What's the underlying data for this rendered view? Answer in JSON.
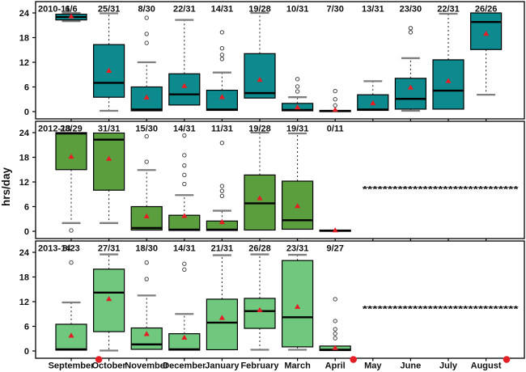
{
  "chart_data": {
    "type": "box",
    "ylabel": "hrs/day",
    "yticks": [
      0,
      6,
      12,
      18,
      24
    ],
    "ylim": [
      0,
      25
    ],
    "grid": false,
    "months": [
      "September",
      "October",
      "November",
      "December",
      "January",
      "February",
      "March",
      "April",
      "May",
      "June",
      "July",
      "August"
    ],
    "footnote_dot_months": [
      "September",
      "April",
      "August"
    ],
    "colors": {
      "panel1_box": "#0d8a8d",
      "panel2_box": "#5a9e3e",
      "panel3_box": "#6fc87d",
      "mean_marker": "#e31e24",
      "year_label": "#e31e24",
      "footnote_dot": "#e31e24",
      "whisker_cap": "#7f7f7f",
      "whisker_line": "#222222",
      "outlier_stroke": "#444444",
      "box_stroke": "#000000",
      "text": "#111111"
    },
    "panels": [
      {
        "year_label": "2010-11",
        "box_color_key": "panel1_box",
        "boxes": [
          {
            "month": "September",
            "count": "6/6",
            "q1": 22.3,
            "q3": 23.7,
            "median": 23.0,
            "mean": 23.2,
            "whisker_low": 22.0,
            "whisker_high": 24.0,
            "outliers": []
          },
          {
            "month": "October",
            "count": "25/31",
            "q1": 3.5,
            "q3": 16.3,
            "median": 7.0,
            "mean": 10.0,
            "whisker_low": 0.2,
            "whisker_high": 23.9,
            "outliers": []
          },
          {
            "month": "November",
            "count": "8/30",
            "q1": 0.2,
            "q3": 6.0,
            "median": 0.5,
            "mean": 3.5,
            "whisker_low": null,
            "whisker_high": 12.0,
            "outliers": [
              16.7,
              18.9,
              22.8
            ]
          },
          {
            "month": "December",
            "count": "22/31",
            "q1": 1.6,
            "q3": 9.2,
            "median": 4.2,
            "mean": 6.3,
            "whisker_low": null,
            "whisker_high": 22.3,
            "outliers": []
          },
          {
            "month": "January",
            "count": "14/31",
            "q1": 0.3,
            "q3": 5.2,
            "median": 0.5,
            "mean": 3.6,
            "whisker_low": null,
            "whisker_high": 9.5,
            "outliers": [
              12.8,
              13.8,
              15.4,
              19.3
            ]
          },
          {
            "month": "February",
            "count": "19/28",
            "q1": 3.3,
            "q3": 14.1,
            "median": 4.5,
            "mean": 7.8,
            "whisker_low": null,
            "whisker_high": 24.0,
            "outliers": []
          },
          {
            "month": "March",
            "count": "10/31",
            "q1": 0.2,
            "q3": 2.0,
            "median": 0.4,
            "mean": 1.1,
            "whisker_low": null,
            "whisker_high": 3.5,
            "outliers": [
              4.9,
              6.1,
              7.9
            ]
          },
          {
            "month": "April",
            "count": "7/30",
            "q1": 0.0,
            "q3": 0.3,
            "median": 0.15,
            "mean": 0.5,
            "whisker_low": null,
            "whisker_high": null,
            "outliers": [
              1.5,
              3.0,
              5.0
            ]
          },
          {
            "month": "May",
            "count": "13/31",
            "q1": 0.3,
            "q3": 4.1,
            "median": 0.5,
            "mean": 2.1,
            "whisker_low": null,
            "whisker_high": 7.4,
            "outliers": []
          },
          {
            "month": "June",
            "count": "23/30",
            "q1": 0.6,
            "q3": 8.1,
            "median": 3.1,
            "mean": 5.9,
            "whisker_low": 0.2,
            "whisker_high": 13.0,
            "outliers": [
              19.3,
              20.3
            ]
          },
          {
            "month": "July",
            "count": "22/31",
            "q1": 0.6,
            "q3": 12.6,
            "median": 5.1,
            "mean": 7.5,
            "whisker_low": null,
            "whisker_high": 23.8,
            "outliers": []
          },
          {
            "month": "August",
            "count": "26/26",
            "q1": 15.1,
            "q3": 24.0,
            "median": 21.8,
            "mean": 19.0,
            "whisker_low": 4.1,
            "whisker_high": null,
            "outliers": []
          }
        ],
        "asterisk_row": null
      },
      {
        "year_label": "2012-13",
        "box_color_key": "panel2_box",
        "boxes": [
          {
            "month": "September",
            "count": "28/29",
            "q1": 15.0,
            "q3": 24.0,
            "median": 23.8,
            "mean": 18.2,
            "whisker_low": 2.0,
            "whisker_high": null,
            "outliers": [
              0.2
            ]
          },
          {
            "month": "October",
            "count": "31/31",
            "q1": 10.0,
            "q3": 23.9,
            "median": 22.3,
            "mean": 17.7,
            "whisker_low": 2.0,
            "whisker_high": null,
            "outliers": []
          },
          {
            "month": "November",
            "count": "15/30",
            "q1": 0.3,
            "q3": 6.0,
            "median": 0.8,
            "mean": 3.7,
            "whisker_low": null,
            "whisker_high": 14.9,
            "outliers": [
              16.9,
              23.1
            ]
          },
          {
            "month": "December",
            "count": "14/31",
            "q1": 0.2,
            "q3": 3.9,
            "median": 0.4,
            "mean": 3.8,
            "whisker_low": null,
            "whisker_high": 8.8,
            "outliers": [
              11.5,
              13.7,
              16.0,
              18.5,
              23.3
            ]
          },
          {
            "month": "January",
            "count": "11/31",
            "q1": 0.2,
            "q3": 2.5,
            "median": 0.4,
            "mean": 2.3,
            "whisker_low": null,
            "whisker_high": 5.0,
            "outliers": [
              8.6,
              9.8,
              11.0,
              21.5
            ]
          },
          {
            "month": "February",
            "count": "19/28",
            "q1": 0.3,
            "q3": 13.7,
            "median": 6.8,
            "mean": 8.1,
            "whisker_low": null,
            "whisker_high": 24.0,
            "outliers": []
          },
          {
            "month": "March",
            "count": "19/31",
            "q1": 0.5,
            "q3": 12.2,
            "median": 2.7,
            "mean": 6.2,
            "whisker_low": null,
            "whisker_high": 23.8,
            "outliers": []
          },
          {
            "month": "April",
            "count": "0/11",
            "q1": 0.0,
            "q3": 0.3,
            "median": 0.15,
            "mean": 0.3,
            "whisker_low": null,
            "whisker_high": null,
            "outliers": []
          }
        ],
        "asterisk_row": {
          "text": "*******************************",
          "y": 10.2,
          "from_month": "May",
          "to_month": "August"
        }
      },
      {
        "year_label": "2013-14",
        "box_color_key": "panel3_box",
        "boxes": [
          {
            "month": "September",
            "count": "8/23",
            "q1": 0.2,
            "q3": 6.5,
            "median": 0.4,
            "mean": 3.8,
            "whisker_low": null,
            "whisker_high": 11.8,
            "outliers": [
              21.5
            ]
          },
          {
            "month": "October",
            "count": "27/31",
            "q1": 4.7,
            "q3": 19.9,
            "median": 14.2,
            "mean": 12.7,
            "whisker_low": 0.1,
            "whisker_high": 23.5,
            "outliers": []
          },
          {
            "month": "November",
            "count": "18/30",
            "q1": 0.4,
            "q3": 5.6,
            "median": 1.6,
            "mean": 4.2,
            "whisker_low": null,
            "whisker_high": 13.5,
            "outliers": [
              17.5,
              21.5
            ]
          },
          {
            "month": "December",
            "count": "14/31",
            "q1": 0.2,
            "q3": 4.2,
            "median": 0.4,
            "mean": 3.3,
            "whisker_low": null,
            "whisker_high": 9.0,
            "outliers": [
              19.8,
              21.2
            ]
          },
          {
            "month": "January",
            "count": "21/31",
            "q1": 0.3,
            "q3": 12.6,
            "median": 6.9,
            "mean": 8.1,
            "whisker_low": null,
            "whisker_high": 23.3,
            "outliers": []
          },
          {
            "month": "February",
            "count": "26/28",
            "q1": 5.5,
            "q3": 12.8,
            "median": 9.7,
            "mean": 10.0,
            "whisker_low": 0.3,
            "whisker_high": 23.5,
            "outliers": []
          },
          {
            "month": "March",
            "count": "23/31",
            "q1": 1.0,
            "q3": 22.0,
            "median": 8.2,
            "mean": 10.8,
            "whisker_low": 0.3,
            "whisker_high": 23.4,
            "outliers": []
          },
          {
            "month": "April",
            "count": "9/27",
            "q1": 0.1,
            "q3": 1.2,
            "median": 0.3,
            "mean": 0.8,
            "whisker_low": null,
            "whisker_high": null,
            "outliers": [
              3.1,
              4.2,
              5.3,
              7.3,
              12.6
            ]
          }
        ],
        "asterisk_row": {
          "text": "*******************************",
          "y": 10.2,
          "from_month": "May",
          "to_month": "August"
        }
      }
    ]
  }
}
